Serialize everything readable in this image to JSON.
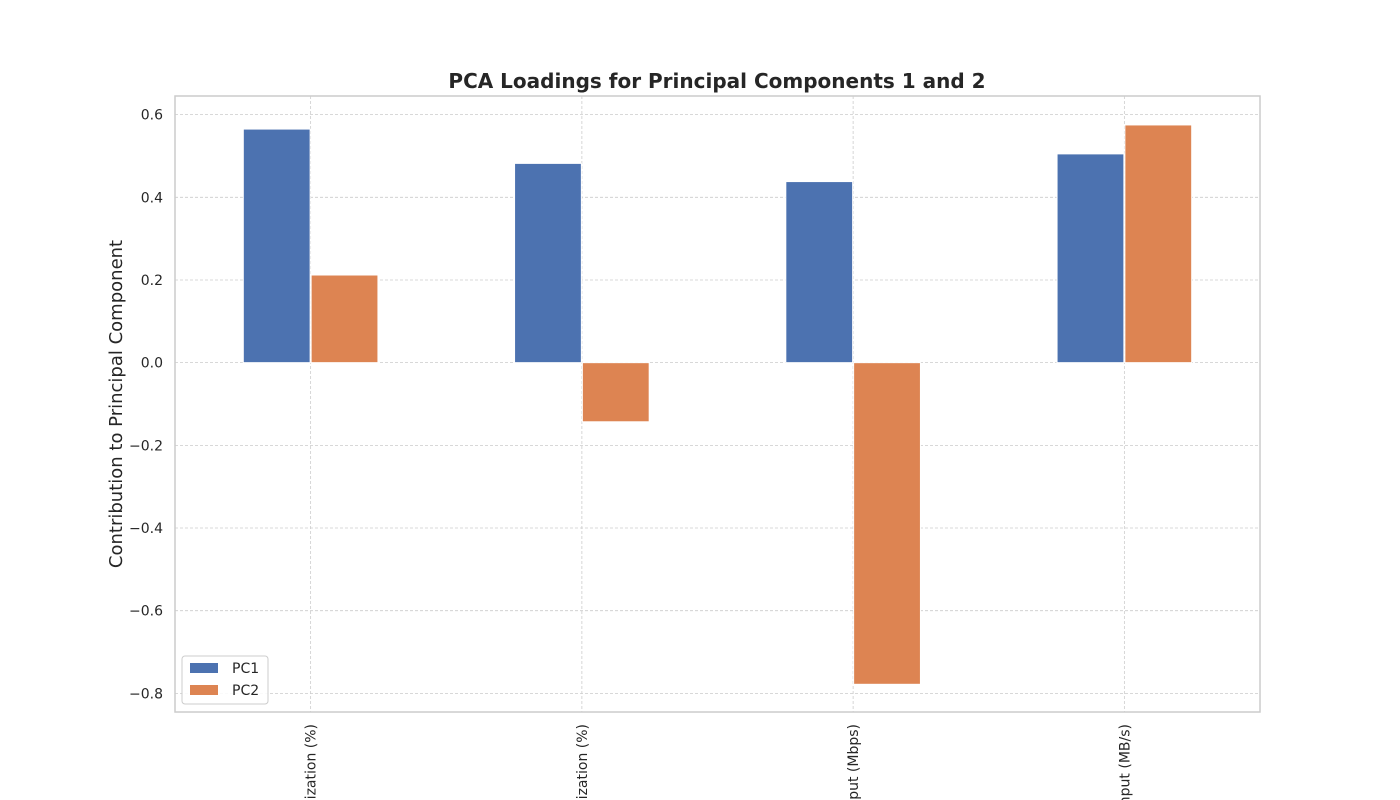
{
  "chart_data": {
    "type": "bar",
    "title": "PCA Loadings for Principal Components 1 and 2",
    "xlabel": "",
    "ylabel": "Contribution to Principal Component",
    "categories": [
      "lization (%)",
      "lization (%)",
      "put (Mbps)",
      "nput (MB/s)"
    ],
    "series": [
      {
        "name": "PC1",
        "values": [
          0.565,
          0.482,
          0.438,
          0.505
        ],
        "color": "#4c72b0"
      },
      {
        "name": "PC2",
        "values": [
          0.212,
          -0.143,
          -0.778,
          0.575
        ],
        "color": "#dd8452"
      }
    ],
    "ylim": [
      -0.845,
      0.645
    ],
    "yticks": [
      0.6,
      0.4,
      0.2,
      0.0,
      -0.2,
      -0.4,
      -0.6,
      -0.8
    ],
    "ytick_labels": [
      "0.6",
      "0.4",
      "0.2",
      "0.0",
      "−0.2",
      "−0.4",
      "−0.6",
      "−0.8"
    ],
    "grid": true,
    "legend_position": "lower-left"
  }
}
